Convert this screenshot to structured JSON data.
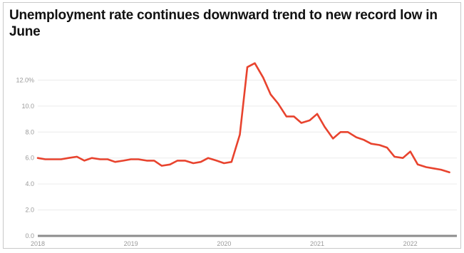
{
  "chart_data": {
    "type": "line",
    "title": "Unemployment rate continues downward trend to new record low in June",
    "xlabel": "",
    "ylabel": "",
    "ylim": [
      0,
      14
    ],
    "y_ticks": [
      0,
      2,
      4,
      6,
      8,
      10,
      12
    ],
    "y_tick_labels": [
      "0.0",
      "2.0",
      "4.0",
      "6.0",
      "8.0",
      "10.0",
      "12.0%"
    ],
    "x_tick_labels": [
      "2018",
      "2019",
      "2020",
      "2021",
      "2022"
    ],
    "x_ticks": [
      2018.0,
      2019.0,
      2020.0,
      2021.0,
      2022.0
    ],
    "x_range": [
      2018.0,
      2022.5
    ],
    "grid": true,
    "line_color": "#e8432e",
    "series": [
      {
        "x": [
          2018.0,
          2018.08,
          2018.17,
          2018.25,
          2018.33,
          2018.42,
          2018.5,
          2018.58,
          2018.67,
          2018.75,
          2018.83,
          2018.92,
          2019.0,
          2019.08,
          2019.17,
          2019.25,
          2019.33,
          2019.42,
          2019.5,
          2019.58,
          2019.67,
          2019.75,
          2019.83,
          2019.92,
          2020.0,
          2020.08,
          2020.17,
          2020.25,
          2020.33,
          2020.42,
          2020.5,
          2020.58,
          2020.67,
          2020.75,
          2020.83,
          2020.92,
          2021.0,
          2021.08,
          2021.17,
          2021.25,
          2021.33,
          2021.42,
          2021.5,
          2021.58,
          2021.67,
          2021.75,
          2021.83,
          2021.92,
          2022.0,
          2022.08,
          2022.17,
          2022.25,
          2022.33,
          2022.42
        ],
        "values": [
          6.0,
          5.9,
          5.9,
          5.9,
          6.0,
          6.1,
          5.8,
          6.0,
          5.9,
          5.9,
          5.7,
          5.8,
          5.9,
          5.9,
          5.8,
          5.8,
          5.4,
          5.5,
          5.8,
          5.8,
          5.6,
          5.7,
          6.0,
          5.8,
          5.6,
          5.7,
          7.8,
          13.0,
          13.3,
          12.2,
          10.9,
          10.2,
          9.2,
          9.2,
          8.7,
          8.9,
          9.4,
          8.4,
          7.5,
          8.0,
          8.0,
          7.6,
          7.4,
          7.1,
          7.0,
          6.8,
          6.1,
          6.0,
          6.5,
          5.5,
          5.3,
          5.2,
          5.1,
          4.9
        ]
      }
    ]
  }
}
